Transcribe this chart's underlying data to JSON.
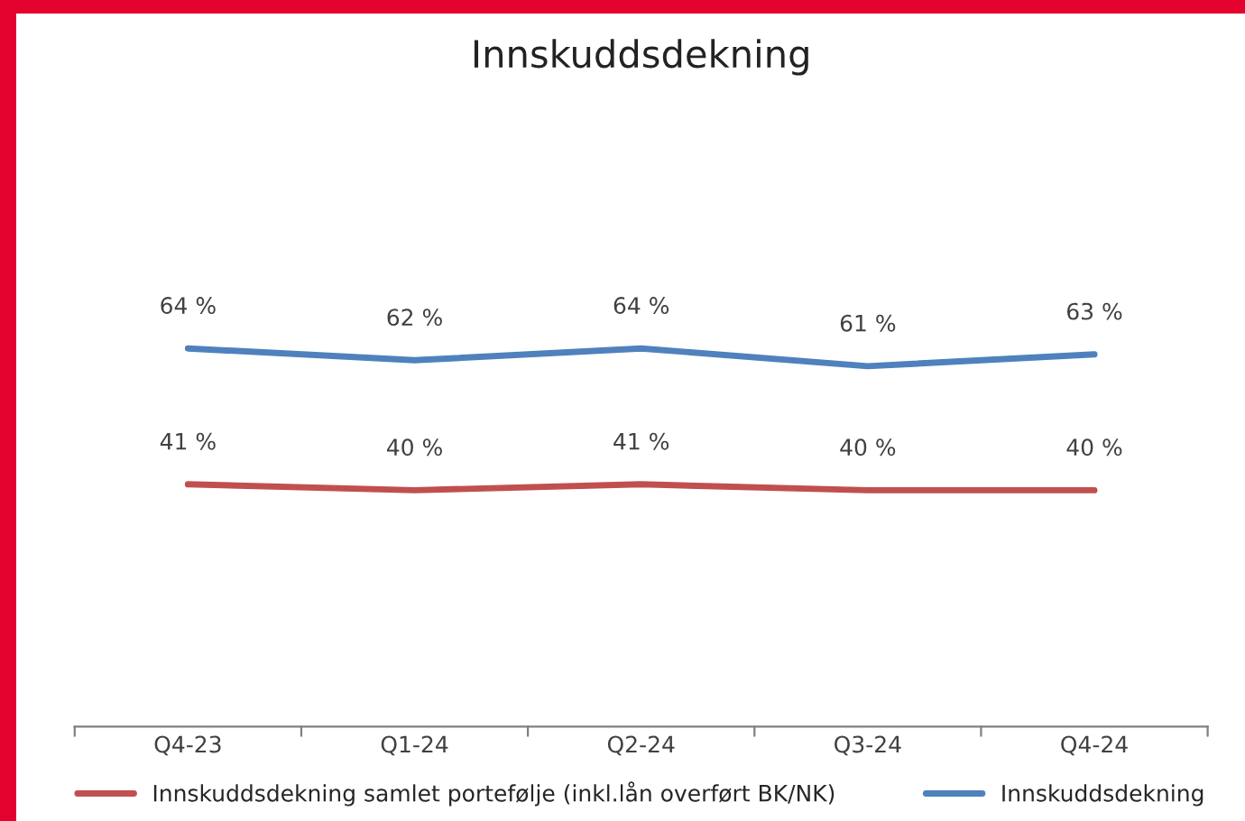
{
  "chart_data": {
    "type": "line",
    "title": "Innskuddsdekning",
    "categories": [
      "Q4-23",
      "Q1-24",
      "Q2-24",
      "Q3-24",
      "Q4-24"
    ],
    "series": [
      {
        "name": "Innskuddsdekning samlet portefølje (inkl.lån overført BK/NK)",
        "color": "#c0504d",
        "values": [
          41,
          40,
          41,
          40,
          40
        ],
        "value_labels": [
          "41 %",
          "40 %",
          "41 %",
          "40 %",
          "40 %"
        ]
      },
      {
        "name": "Innskuddsdekning",
        "color": "#4f81bd",
        "values": [
          64,
          62,
          64,
          61,
          63
        ],
        "value_labels": [
          "64 %",
          "62 %",
          "64 %",
          "61 %",
          "63 %"
        ]
      }
    ],
    "tick_labels": "x",
    "grid": false,
    "legend": "bottom",
    "marker": "none",
    "line_style": "solid"
  }
}
